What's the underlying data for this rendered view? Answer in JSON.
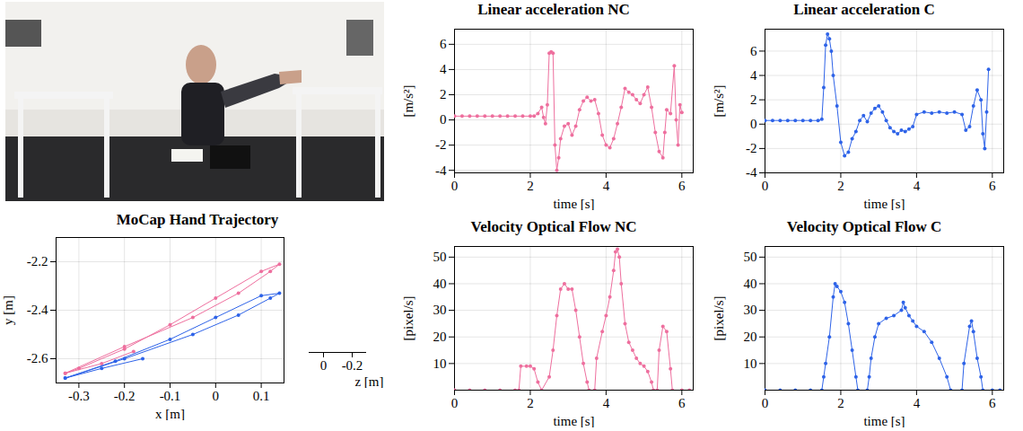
{
  "chart_data": [
    {
      "type": "line",
      "title": "MoCap Hand Trajectory",
      "xlabel": "x [m]",
      "ylabel": "y [m]",
      "zlabel": "z [m]",
      "xlim": [
        -0.35,
        0.15
      ],
      "xticks": [
        -0.3,
        -0.2,
        -0.1,
        0,
        0.1
      ],
      "ylim": [
        -2.7,
        -2.1
      ],
      "yticks": [
        -2.6,
        -2.4,
        -2.2
      ],
      "zlim": [
        0.1,
        -0.3
      ],
      "zticks": [
        0,
        -0.2
      ],
      "grid": true,
      "series": [
        {
          "color": "#ee6f9e",
          "marker": "dot",
          "x": [
            -0.18,
            -0.25,
            -0.33,
            -0.2,
            -0.05,
            0.05,
            0.12,
            0.14,
            0.1,
            0.0,
            -0.1,
            -0.2,
            -0.3,
            -0.33
          ],
          "values": [
            -2.57,
            -2.62,
            -2.66,
            -2.55,
            -2.43,
            -2.33,
            -2.24,
            -2.21,
            -2.24,
            -2.35,
            -2.46,
            -2.56,
            -2.64,
            -2.66
          ]
        },
        {
          "color": "#2e63e8",
          "marker": "dot",
          "x": [
            -0.16,
            -0.25,
            -0.33,
            -0.2,
            -0.05,
            0.05,
            0.12,
            0.14,
            0.1,
            0.0,
            -0.1,
            -0.22,
            -0.33
          ],
          "values": [
            -2.6,
            -2.64,
            -2.68,
            -2.6,
            -2.5,
            -2.42,
            -2.35,
            -2.33,
            -2.34,
            -2.43,
            -2.52,
            -2.61,
            -2.68
          ]
        }
      ]
    },
    {
      "type": "line",
      "title": "Linear acceleration NC",
      "xlabel": "time [s]",
      "ylabel": "[m/s²]",
      "xlim": [
        0,
        6.3
      ],
      "xticks": [
        0,
        2,
        4,
        6
      ],
      "ylim": [
        -4.2,
        7.2
      ],
      "yticks": [
        -4,
        -2,
        0,
        2,
        4,
        6
      ],
      "grid": true,
      "x": [
        0,
        0.2,
        0.4,
        0.6,
        0.8,
        1.0,
        1.2,
        1.4,
        1.6,
        1.8,
        2.0,
        2.1,
        2.2,
        2.3,
        2.35,
        2.4,
        2.45,
        2.5,
        2.55,
        2.6,
        2.65,
        2.7,
        2.75,
        2.8,
        2.9,
        3.0,
        3.1,
        3.2,
        3.3,
        3.4,
        3.5,
        3.6,
        3.7,
        3.8,
        3.9,
        4.0,
        4.1,
        4.2,
        4.3,
        4.4,
        4.5,
        4.6,
        4.7,
        4.8,
        4.9,
        5.0,
        5.1,
        5.2,
        5.3,
        5.4,
        5.5,
        5.55,
        5.6,
        5.7,
        5.8,
        5.85,
        5.9,
        5.95,
        6.0
      ],
      "series": [
        {
          "color": "#ee6f9e",
          "marker": "dot",
          "values": [
            0.3,
            0.3,
            0.3,
            0.3,
            0.3,
            0.3,
            0.3,
            0.3,
            0.3,
            0.3,
            0.3,
            0.3,
            0.5,
            1.0,
            0.2,
            -0.3,
            1.2,
            5.3,
            5.4,
            5.3,
            -2,
            -4,
            -3,
            -1.5,
            -0.5,
            -0.3,
            -1.2,
            -0.5,
            0.8,
            1.5,
            1.8,
            1.5,
            1.6,
            0.5,
            -1.2,
            -2.0,
            -2.2,
            -1.5,
            -0.3,
            1.0,
            2.5,
            2.2,
            2.0,
            1.6,
            1.3,
            2.0,
            2.6,
            1.0,
            -1.0,
            -2.5,
            -3.0,
            -1.0,
            0.8,
            0.5,
            4.3,
            0,
            -2.0,
            1.2,
            0.6
          ]
        }
      ]
    },
    {
      "type": "line",
      "title": "Linear acceleration C",
      "xlabel": "time [s]",
      "ylabel": "[m/s²]",
      "xlim": [
        0,
        6.3
      ],
      "xticks": [
        0,
        2,
        4,
        6
      ],
      "ylim": [
        -4,
        7.8
      ],
      "yticks": [
        -4,
        -2,
        0,
        2,
        4,
        6
      ],
      "grid": true,
      "x": [
        0,
        0.2,
        0.4,
        0.6,
        0.8,
        1.0,
        1.2,
        1.4,
        1.5,
        1.55,
        1.6,
        1.65,
        1.7,
        1.75,
        1.8,
        1.9,
        2.0,
        2.1,
        2.2,
        2.3,
        2.4,
        2.5,
        2.6,
        2.7,
        2.8,
        2.9,
        3.0,
        3.1,
        3.2,
        3.3,
        3.4,
        3.5,
        3.6,
        3.7,
        3.8,
        3.9,
        4.0,
        4.2,
        4.4,
        4.6,
        4.8,
        5.0,
        5.2,
        5.3,
        5.4,
        5.5,
        5.6,
        5.7,
        5.75,
        5.8,
        5.85,
        5.9
      ],
      "series": [
        {
          "color": "#2e63e8",
          "marker": "dot",
          "values": [
            0.3,
            0.3,
            0.3,
            0.3,
            0.3,
            0.3,
            0.3,
            0.3,
            0.4,
            3,
            6.5,
            7.4,
            7,
            6,
            4,
            1.5,
            -1.5,
            -2.6,
            -2.3,
            -1.2,
            -0.6,
            0.3,
            0.7,
            0.2,
            0.9,
            1.3,
            1.5,
            1.0,
            0.3,
            -0.3,
            -0.6,
            -0.8,
            -0.5,
            -0.6,
            -0.4,
            -0.2,
            0.8,
            1.0,
            0.9,
            1.0,
            0.9,
            1.0,
            0.8,
            -0.5,
            -0.2,
            1.5,
            2.8,
            2.0,
            -0.8,
            -2.0,
            1.0,
            4.5
          ]
        }
      ]
    },
    {
      "type": "line",
      "title": "Velocity Optical Flow NC",
      "xlabel": "time [s]",
      "ylabel": "[pixel/s]",
      "xlim": [
        0,
        6.3
      ],
      "xticks": [
        0,
        2,
        4,
        6
      ],
      "ylim": [
        0,
        54
      ],
      "yticks": [
        10,
        20,
        30,
        40,
        50
      ],
      "grid": true,
      "x": [
        0,
        0.4,
        0.8,
        1.2,
        1.6,
        1.7,
        1.75,
        1.9,
        2.0,
        2.1,
        2.2,
        2.3,
        2.5,
        2.6,
        2.7,
        2.8,
        2.9,
        3.0,
        3.1,
        3.2,
        3.3,
        3.4,
        3.5,
        3.55,
        3.7,
        3.75,
        3.9,
        4.0,
        4.1,
        4.2,
        4.25,
        4.3,
        4.35,
        4.4,
        4.5,
        4.6,
        4.7,
        4.8,
        4.9,
        5.0,
        5.1,
        5.2,
        5.25,
        5.35,
        5.4,
        5.5,
        5.6,
        5.7,
        5.75,
        6.0,
        6.2
      ],
      "series": [
        {
          "color": "#ee6f9e",
          "marker": "dot",
          "values": [
            0,
            0,
            0,
            0,
            0,
            0,
            9,
            9,
            9,
            8,
            3,
            0,
            5,
            15,
            28,
            38,
            40,
            38,
            38,
            30,
            20,
            10,
            3,
            0,
            0,
            12,
            22,
            28,
            35,
            45,
            52,
            53,
            50,
            40,
            25,
            18,
            15,
            12,
            10,
            9,
            7,
            3,
            0,
            0,
            15,
            24,
            22,
            8,
            0,
            0,
            0
          ]
        }
      ]
    },
    {
      "type": "line",
      "title": "Velocity Optical Flow C",
      "xlabel": "time [s]",
      "ylabel": "[pixel/s]",
      "xlim": [
        0,
        6.3
      ],
      "xticks": [
        0,
        2,
        4,
        6
      ],
      "ylim": [
        0,
        54
      ],
      "yticks": [
        10,
        20,
        30,
        40,
        50
      ],
      "grid": true,
      "x": [
        0,
        0.4,
        0.8,
        1.2,
        1.5,
        1.55,
        1.6,
        1.7,
        1.8,
        1.85,
        1.9,
        2.0,
        2.1,
        2.2,
        2.3,
        2.4,
        2.45,
        2.7,
        2.75,
        2.8,
        2.9,
        3.0,
        3.2,
        3.4,
        3.6,
        3.65,
        3.7,
        3.8,
        3.9,
        4.0,
        4.2,
        4.4,
        4.6,
        4.8,
        4.9,
        5.2,
        5.25,
        5.4,
        5.45,
        5.5,
        5.6,
        5.7,
        5.75,
        6.0,
        6.2
      ],
      "series": [
        {
          "color": "#2e63e8",
          "marker": "dot",
          "values": [
            0,
            0,
            0,
            0,
            0,
            5,
            10,
            20,
            35,
            40,
            39,
            37,
            33,
            25,
            15,
            5,
            0,
            0,
            5,
            12,
            20,
            25,
            27,
            28,
            30,
            33,
            31,
            28,
            26,
            24,
            22,
            18,
            12,
            5,
            0,
            0,
            10,
            24,
            26,
            22,
            12,
            5,
            0,
            0,
            0
          ]
        }
      ]
    }
  ]
}
